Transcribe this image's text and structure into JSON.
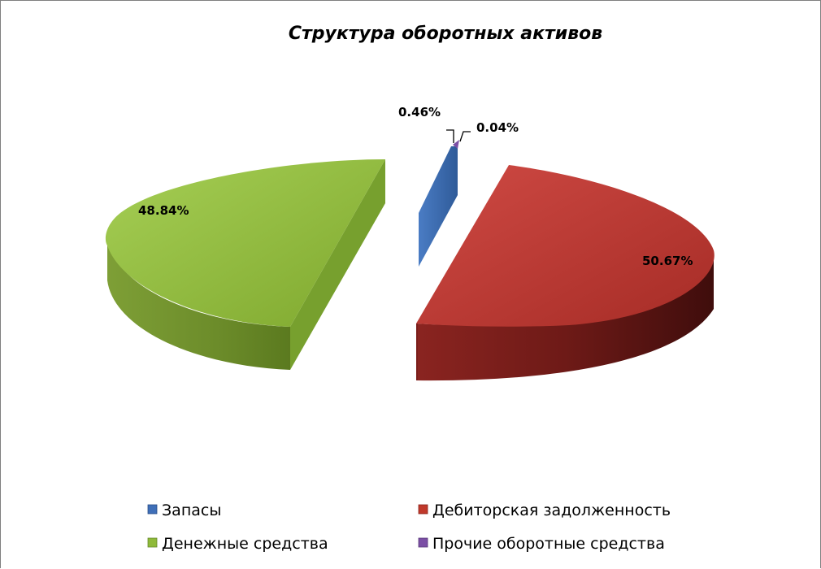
{
  "chart_data": {
    "type": "pie",
    "title": "Структура оборотных активов",
    "slices": [
      {
        "name": "Запасы",
        "value": 0.46,
        "label": "0.46%",
        "color": "#3f6fb8"
      },
      {
        "name": "Дебиторская задолженность",
        "value": 50.67,
        "label": "50.67%",
        "color": "#c0392b"
      },
      {
        "name": "Денежные средства",
        "value": 48.84,
        "label": "48.84%",
        "color": "#8fba3a"
      },
      {
        "name": "Прочие оборотные средства",
        "value": 0.04,
        "label": "0.04%",
        "color": "#7b4fa5"
      }
    ],
    "legend_position": "bottom",
    "exploded": true,
    "style": "3d"
  }
}
